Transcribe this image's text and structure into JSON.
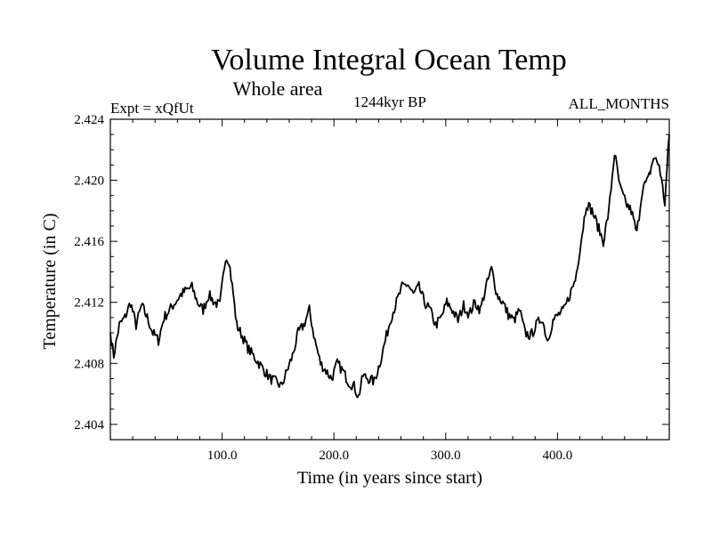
{
  "chart_data": {
    "type": "line",
    "title": "Volume Integral Ocean Temp",
    "subtitle": "Whole area",
    "annotations": {
      "left": "Expt = xQfUt",
      "center": "1244kyr BP",
      "right": "ALL_MONTHS"
    },
    "xlabel": "Time (in years since start)",
    "ylabel": "Temperature (in C)",
    "xlim": [
      0,
      500
    ],
    "ylim": [
      2.403,
      2.424
    ],
    "xticks": [
      100,
      200,
      300,
      400
    ],
    "xtick_labels": [
      "100.0",
      "200.0",
      "300.0",
      "400.0"
    ],
    "yticks": [
      2.404,
      2.408,
      2.412,
      2.416,
      2.42,
      2.424
    ],
    "ytick_labels": [
      "2.404",
      "2.408",
      "2.412",
      "2.416",
      "2.420",
      "2.424"
    ],
    "grid": false,
    "series": [
      {
        "name": "Temperature",
        "anchors_x": [
          0,
          3,
          8,
          13,
          18,
          23,
          28,
          33,
          38,
          43,
          48,
          53,
          58,
          63,
          68,
          73,
          78,
          83,
          88,
          93,
          98,
          103,
          106,
          110,
          113,
          118,
          123,
          128,
          133,
          138,
          143,
          148,
          153,
          158,
          163,
          168,
          173,
          178,
          183,
          188,
          193,
          198,
          203,
          208,
          213,
          218,
          222,
          226,
          231,
          236,
          241,
          246,
          251,
          256,
          261,
          266,
          271,
          276,
          281,
          286,
          291,
          296,
          301,
          306,
          311,
          316,
          321,
          326,
          331,
          336,
          341,
          346,
          351,
          356,
          361,
          366,
          371,
          376,
          381,
          386,
          391,
          396,
          401,
          406,
          411,
          416,
          421,
          426,
          431,
          436,
          441,
          446,
          451,
          456,
          461,
          466,
          471,
          476,
          481,
          486,
          491,
          496,
          500
        ],
        "anchors_y": [
          2.41,
          2.4085,
          2.4105,
          2.411,
          2.412,
          2.4105,
          2.4118,
          2.411,
          2.41,
          2.4095,
          2.411,
          2.4115,
          2.412,
          2.4125,
          2.4128,
          2.413,
          2.412,
          2.4115,
          2.4125,
          2.412,
          2.4118,
          2.415,
          2.4148,
          2.4125,
          2.4105,
          2.4098,
          2.409,
          2.4085,
          2.408,
          2.4075,
          2.407,
          2.4068,
          2.4065,
          2.4075,
          2.4085,
          2.41,
          2.4105,
          2.4115,
          2.4095,
          2.408,
          2.4075,
          2.407,
          2.408,
          2.4075,
          2.4068,
          2.4065,
          2.4058,
          2.4072,
          2.407,
          2.4068,
          2.408,
          2.4095,
          2.411,
          2.412,
          2.413,
          2.4132,
          2.4125,
          2.413,
          2.412,
          2.4115,
          2.4105,
          2.411,
          2.412,
          2.4115,
          2.4108,
          2.4118,
          2.4112,
          2.412,
          2.4115,
          2.413,
          2.4142,
          2.4125,
          2.412,
          2.4112,
          2.4108,
          2.4115,
          2.41,
          2.4098,
          2.4105,
          2.411,
          2.4095,
          2.4108,
          2.4112,
          2.4115,
          2.4125,
          2.4135,
          2.416,
          2.4185,
          2.418,
          2.417,
          2.416,
          2.418,
          2.4218,
          2.4195,
          2.4185,
          2.418,
          2.4165,
          2.4195,
          2.42,
          2.4215,
          2.421,
          2.4185,
          2.423
        ]
      }
    ]
  }
}
